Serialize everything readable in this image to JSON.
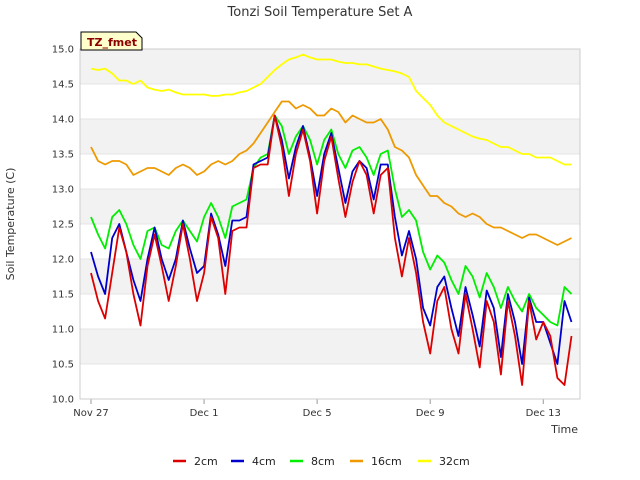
{
  "chart_data": {
    "type": "line",
    "title": "Tonzi Soil Temperature Set A",
    "xlabel": "Time",
    "ylabel": "Soil Temperature (C)",
    "badge": "TZ_fmet",
    "ylim": [
      10.0,
      15.0
    ],
    "xlim": [
      0,
      17.3
    ],
    "x_ticks": [
      {
        "x": 0,
        "label": "Nov 27"
      },
      {
        "x": 4,
        "label": "Dec 1"
      },
      {
        "x": 8,
        "label": "Dec 5"
      },
      {
        "x": 12,
        "label": "Dec 9"
      },
      {
        "x": 16,
        "label": "Dec 13"
      }
    ],
    "y_ticks": [
      "10.0",
      "10.5",
      "11.0",
      "11.5",
      "12.0",
      "12.5",
      "13.0",
      "13.5",
      "14.0",
      "14.5",
      "15.0"
    ],
    "grid": "horizontal bands",
    "legend_position": "bottom",
    "series": [
      {
        "name": "2cm",
        "color": "#dd0000",
        "x": [
          0.0,
          0.25,
          0.5,
          0.75,
          1.0,
          1.25,
          1.5,
          1.75,
          2.0,
          2.25,
          2.5,
          2.75,
          3.0,
          3.25,
          3.5,
          3.75,
          4.0,
          4.25,
          4.5,
          4.75,
          5.0,
          5.25,
          5.5,
          5.75,
          6.0,
          6.25,
          6.5,
          6.75,
          7.0,
          7.25,
          7.5,
          7.75,
          8.0,
          8.25,
          8.5,
          8.75,
          9.0,
          9.25,
          9.5,
          9.75,
          10.0,
          10.25,
          10.5,
          10.75,
          11.0,
          11.25,
          11.5,
          11.75,
          12.0,
          12.25,
          12.5,
          12.75,
          13.0,
          13.25,
          13.5,
          13.75,
          14.0,
          14.25,
          14.5,
          14.75,
          15.0,
          15.25,
          15.5,
          15.75,
          16.0,
          16.25,
          16.5,
          16.75,
          17.0
        ],
        "y": [
          11.8,
          11.4,
          11.15,
          11.8,
          12.45,
          12.1,
          11.5,
          11.05,
          11.9,
          12.35,
          11.9,
          11.4,
          11.9,
          12.5,
          12.0,
          11.4,
          11.8,
          12.6,
          12.3,
          11.5,
          12.4,
          12.45,
          12.45,
          13.3,
          13.35,
          13.35,
          14.05,
          13.6,
          12.9,
          13.5,
          13.85,
          13.4,
          12.65,
          13.4,
          13.75,
          13.15,
          12.6,
          13.1,
          13.4,
          13.2,
          12.65,
          13.2,
          13.3,
          12.3,
          11.75,
          12.3,
          11.8,
          11.1,
          10.65,
          11.4,
          11.6,
          11.0,
          10.65,
          11.5,
          11.0,
          10.45,
          11.4,
          11.1,
          10.35,
          11.4,
          10.9,
          10.2,
          11.4,
          10.85,
          11.1,
          10.9,
          10.3,
          10.2,
          10.9
        ]
      },
      {
        "name": "4cm",
        "color": "#0000cc",
        "x": [
          0.0,
          0.25,
          0.5,
          0.75,
          1.0,
          1.25,
          1.5,
          1.75,
          2.0,
          2.25,
          2.5,
          2.75,
          3.0,
          3.25,
          3.5,
          3.75,
          4.0,
          4.25,
          4.5,
          4.75,
          5.0,
          5.25,
          5.5,
          5.75,
          6.0,
          6.25,
          6.5,
          6.75,
          7.0,
          7.25,
          7.5,
          7.75,
          8.0,
          8.25,
          8.5,
          8.75,
          9.0,
          9.25,
          9.5,
          9.75,
          10.0,
          10.25,
          10.5,
          10.75,
          11.0,
          11.25,
          11.5,
          11.75,
          12.0,
          12.25,
          12.5,
          12.75,
          13.0,
          13.25,
          13.5,
          13.75,
          14.0,
          14.25,
          14.5,
          14.75,
          15.0,
          15.25,
          15.5,
          15.75,
          16.0,
          16.25,
          16.5,
          16.75,
          17.0
        ],
        "y": [
          12.1,
          11.75,
          11.5,
          12.3,
          12.5,
          12.1,
          11.7,
          11.4,
          12.0,
          12.45,
          12.0,
          11.7,
          12.0,
          12.55,
          12.15,
          11.8,
          11.9,
          12.65,
          12.35,
          11.9,
          12.55,
          12.55,
          12.6,
          13.35,
          13.4,
          13.45,
          14.05,
          13.7,
          13.15,
          13.6,
          13.9,
          13.45,
          12.9,
          13.5,
          13.8,
          13.3,
          12.8,
          13.25,
          13.4,
          13.3,
          12.85,
          13.35,
          13.35,
          12.6,
          12.05,
          12.4,
          12.0,
          11.3,
          11.05,
          11.6,
          11.75,
          11.3,
          10.9,
          11.6,
          11.2,
          10.75,
          11.55,
          11.3,
          10.6,
          11.5,
          11.1,
          10.5,
          11.45,
          11.1,
          11.1,
          10.8,
          10.5,
          11.4,
          11.1
        ]
      },
      {
        "name": "8cm",
        "color": "#00ee00",
        "x": [
          0.0,
          0.25,
          0.5,
          0.75,
          1.0,
          1.25,
          1.5,
          1.75,
          2.0,
          2.25,
          2.5,
          2.75,
          3.0,
          3.25,
          3.5,
          3.75,
          4.0,
          4.25,
          4.5,
          4.75,
          5.0,
          5.25,
          5.5,
          5.75,
          6.0,
          6.25,
          6.5,
          6.75,
          7.0,
          7.25,
          7.5,
          7.75,
          8.0,
          8.25,
          8.5,
          8.75,
          9.0,
          9.25,
          9.5,
          9.75,
          10.0,
          10.25,
          10.5,
          10.75,
          11.0,
          11.25,
          11.5,
          11.75,
          12.0,
          12.25,
          12.5,
          12.75,
          13.0,
          13.25,
          13.5,
          13.75,
          14.0,
          14.25,
          14.5,
          14.75,
          15.0,
          15.25,
          15.5,
          15.75,
          16.0,
          16.25,
          16.5,
          16.75,
          17.0
        ],
        "y": [
          12.6,
          12.35,
          12.15,
          12.6,
          12.7,
          12.5,
          12.2,
          12.0,
          12.4,
          12.45,
          12.2,
          12.15,
          12.4,
          12.55,
          12.4,
          12.25,
          12.6,
          12.8,
          12.6,
          12.3,
          12.75,
          12.8,
          12.85,
          13.3,
          13.45,
          13.5,
          14.05,
          13.9,
          13.5,
          13.75,
          13.9,
          13.7,
          13.35,
          13.7,
          13.85,
          13.5,
          13.3,
          13.55,
          13.6,
          13.45,
          13.2,
          13.5,
          13.55,
          13.0,
          12.6,
          12.7,
          12.55,
          12.1,
          11.85,
          12.05,
          11.95,
          11.7,
          11.5,
          11.9,
          11.75,
          11.45,
          11.8,
          11.6,
          11.3,
          11.6,
          11.4,
          11.25,
          11.5,
          11.3,
          11.2,
          11.1,
          11.05,
          11.6,
          11.5
        ]
      },
      {
        "name": "16cm",
        "color": "#ee9900",
        "x": [
          0.0,
          0.25,
          0.5,
          0.75,
          1.0,
          1.25,
          1.5,
          1.75,
          2.0,
          2.25,
          2.5,
          2.75,
          3.0,
          3.25,
          3.5,
          3.75,
          4.0,
          4.25,
          4.5,
          4.75,
          5.0,
          5.25,
          5.5,
          5.75,
          6.0,
          6.25,
          6.5,
          6.75,
          7.0,
          7.25,
          7.5,
          7.75,
          8.0,
          8.25,
          8.5,
          8.75,
          9.0,
          9.25,
          9.5,
          9.75,
          10.0,
          10.25,
          10.5,
          10.75,
          11.0,
          11.25,
          11.5,
          11.75,
          12.0,
          12.25,
          12.5,
          12.75,
          13.0,
          13.25,
          13.5,
          13.75,
          14.0,
          14.25,
          14.5,
          14.75,
          15.0,
          15.25,
          15.5,
          15.75,
          16.0,
          16.25,
          16.5,
          16.75,
          17.0
        ],
        "y": [
          13.6,
          13.4,
          13.35,
          13.4,
          13.4,
          13.35,
          13.2,
          13.25,
          13.3,
          13.3,
          13.25,
          13.2,
          13.3,
          13.35,
          13.3,
          13.2,
          13.25,
          13.35,
          13.4,
          13.35,
          13.4,
          13.5,
          13.55,
          13.65,
          13.8,
          13.95,
          14.1,
          14.25,
          14.25,
          14.15,
          14.2,
          14.15,
          14.05,
          14.05,
          14.15,
          14.1,
          13.95,
          14.05,
          14.0,
          13.95,
          13.95,
          14.0,
          13.85,
          13.6,
          13.55,
          13.45,
          13.2,
          13.05,
          12.9,
          12.9,
          12.8,
          12.75,
          12.65,
          12.6,
          12.65,
          12.6,
          12.5,
          12.45,
          12.45,
          12.4,
          12.35,
          12.3,
          12.35,
          12.35,
          12.3,
          12.25,
          12.2,
          12.25,
          12.3
        ]
      },
      {
        "name": "32cm",
        "color": "#ffff00",
        "x": [
          0.0,
          0.25,
          0.5,
          0.75,
          1.0,
          1.25,
          1.5,
          1.75,
          2.0,
          2.25,
          2.5,
          2.75,
          3.0,
          3.25,
          3.5,
          3.75,
          4.0,
          4.25,
          4.5,
          4.75,
          5.0,
          5.25,
          5.5,
          5.75,
          6.0,
          6.25,
          6.5,
          6.75,
          7.0,
          7.25,
          7.5,
          7.75,
          8.0,
          8.25,
          8.5,
          8.75,
          9.0,
          9.25,
          9.5,
          9.75,
          10.0,
          10.25,
          10.5,
          10.75,
          11.0,
          11.25,
          11.5,
          11.75,
          12.0,
          12.25,
          12.5,
          12.75,
          13.0,
          13.25,
          13.5,
          13.75,
          14.0,
          14.25,
          14.5,
          14.75,
          15.0,
          15.25,
          15.5,
          15.75,
          16.0,
          16.25,
          16.5,
          16.75,
          17.0
        ],
        "y": [
          14.72,
          14.7,
          14.72,
          14.65,
          14.55,
          14.55,
          14.5,
          14.55,
          14.45,
          14.42,
          14.4,
          14.42,
          14.38,
          14.35,
          14.35,
          14.35,
          14.35,
          14.33,
          14.33,
          14.35,
          14.35,
          14.38,
          14.4,
          14.45,
          14.5,
          14.6,
          14.7,
          14.78,
          14.85,
          14.88,
          14.92,
          14.88,
          14.85,
          14.85,
          14.85,
          14.82,
          14.8,
          14.8,
          14.78,
          14.78,
          14.75,
          14.72,
          14.7,
          14.68,
          14.65,
          14.6,
          14.4,
          14.3,
          14.2,
          14.05,
          13.95,
          13.9,
          13.85,
          13.8,
          13.75,
          13.72,
          13.7,
          13.65,
          13.6,
          13.6,
          13.55,
          13.5,
          13.5,
          13.45,
          13.45,
          13.45,
          13.4,
          13.35,
          13.35
        ]
      }
    ]
  }
}
